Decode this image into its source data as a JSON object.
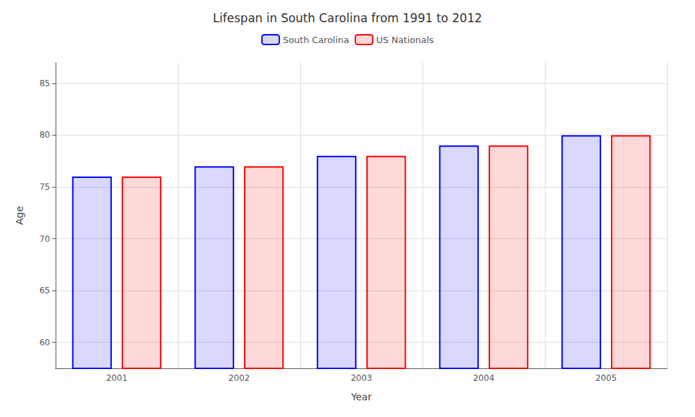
{
  "chart_data": {
    "type": "bar",
    "title": "Lifespan in South Carolina from 1991 to 2012",
    "xlabel": "Year",
    "ylabel": "Age",
    "categories": [
      "2001",
      "2002",
      "2003",
      "2004",
      "2005"
    ],
    "series": [
      {
        "name": "South Carolina",
        "color": "#0000ff",
        "values": [
          76.0,
          77.0,
          78.0,
          79.0,
          80.0
        ]
      },
      {
        "name": "US Nationals",
        "color": "#ff0000",
        "values": [
          76.0,
          77.0,
          78.0,
          79.0,
          80.0
        ]
      }
    ],
    "ylim": [
      57.5,
      87.0
    ],
    "yticks": [
      60,
      65,
      70,
      75,
      80,
      85
    ],
    "grid": true,
    "legend": "top"
  }
}
